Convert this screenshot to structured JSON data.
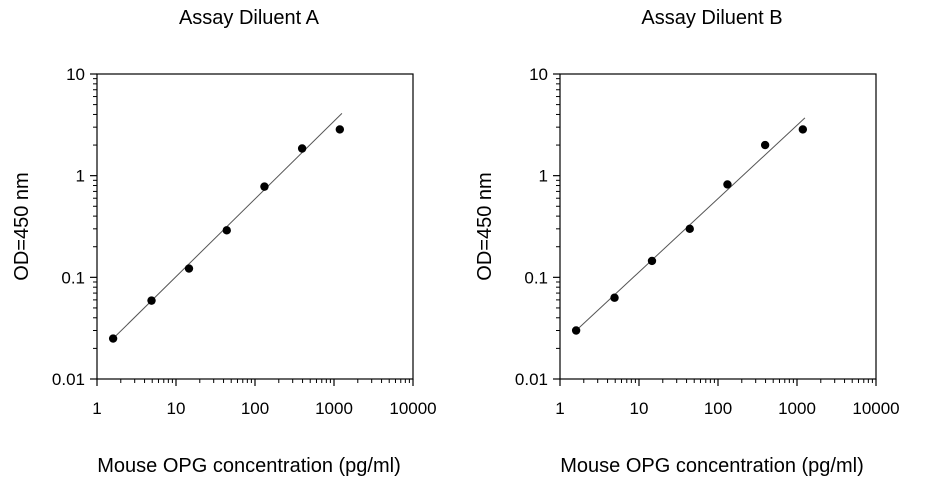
{
  "chart_data": [
    {
      "type": "scatter",
      "title": "Assay Diluent A",
      "xlabel": "Mouse OPG concentration (pg/ml)",
      "ylabel": "OD=450 nm",
      "xscale": "log",
      "yscale": "log",
      "xlim": [
        1,
        10000
      ],
      "ylim": [
        0.01,
        10
      ],
      "xticks": [
        "1",
        "10",
        "100",
        "1000",
        "10000"
      ],
      "yticks": [
        "0.01",
        "0.1",
        "1",
        "10"
      ],
      "grid": false,
      "series": [
        {
          "points": [
            {
              "x": 1.6,
              "y": 0.025
            },
            {
              "x": 4.9,
              "y": 0.059
            },
            {
              "x": 14.6,
              "y": 0.122
            },
            {
              "x": 43.9,
              "y": 0.29
            },
            {
              "x": 131.7,
              "y": 0.78
            },
            {
              "x": 395,
              "y": 1.85
            },
            {
              "x": 1185,
              "y": 2.85
            }
          ]
        }
      ],
      "fit_line": [
        {
          "x": 1.6,
          "y": 0.025
        },
        {
          "x": 1260,
          "y": 4.1
        }
      ]
    },
    {
      "type": "scatter",
      "title": "Assay Diluent B",
      "xlabel": "Mouse OPG concentration (pg/ml)",
      "ylabel": "OD=450 nm",
      "xscale": "log",
      "yscale": "log",
      "xlim": [
        1,
        10000
      ],
      "ylim": [
        0.01,
        10
      ],
      "xticks": [
        "1",
        "10",
        "100",
        "1000",
        "10000"
      ],
      "yticks": [
        "0.01",
        "0.1",
        "1",
        "10"
      ],
      "grid": false,
      "series": [
        {
          "points": [
            {
              "x": 1.6,
              "y": 0.03
            },
            {
              "x": 4.9,
              "y": 0.063
            },
            {
              "x": 14.6,
              "y": 0.145
            },
            {
              "x": 43.9,
              "y": 0.3
            },
            {
              "x": 131.7,
              "y": 0.82
            },
            {
              "x": 395,
              "y": 2.0
            },
            {
              "x": 1185,
              "y": 2.85
            }
          ]
        }
      ],
      "fit_line": [
        {
          "x": 1.6,
          "y": 0.03
        },
        {
          "x": 1260,
          "y": 3.7
        }
      ]
    }
  ]
}
